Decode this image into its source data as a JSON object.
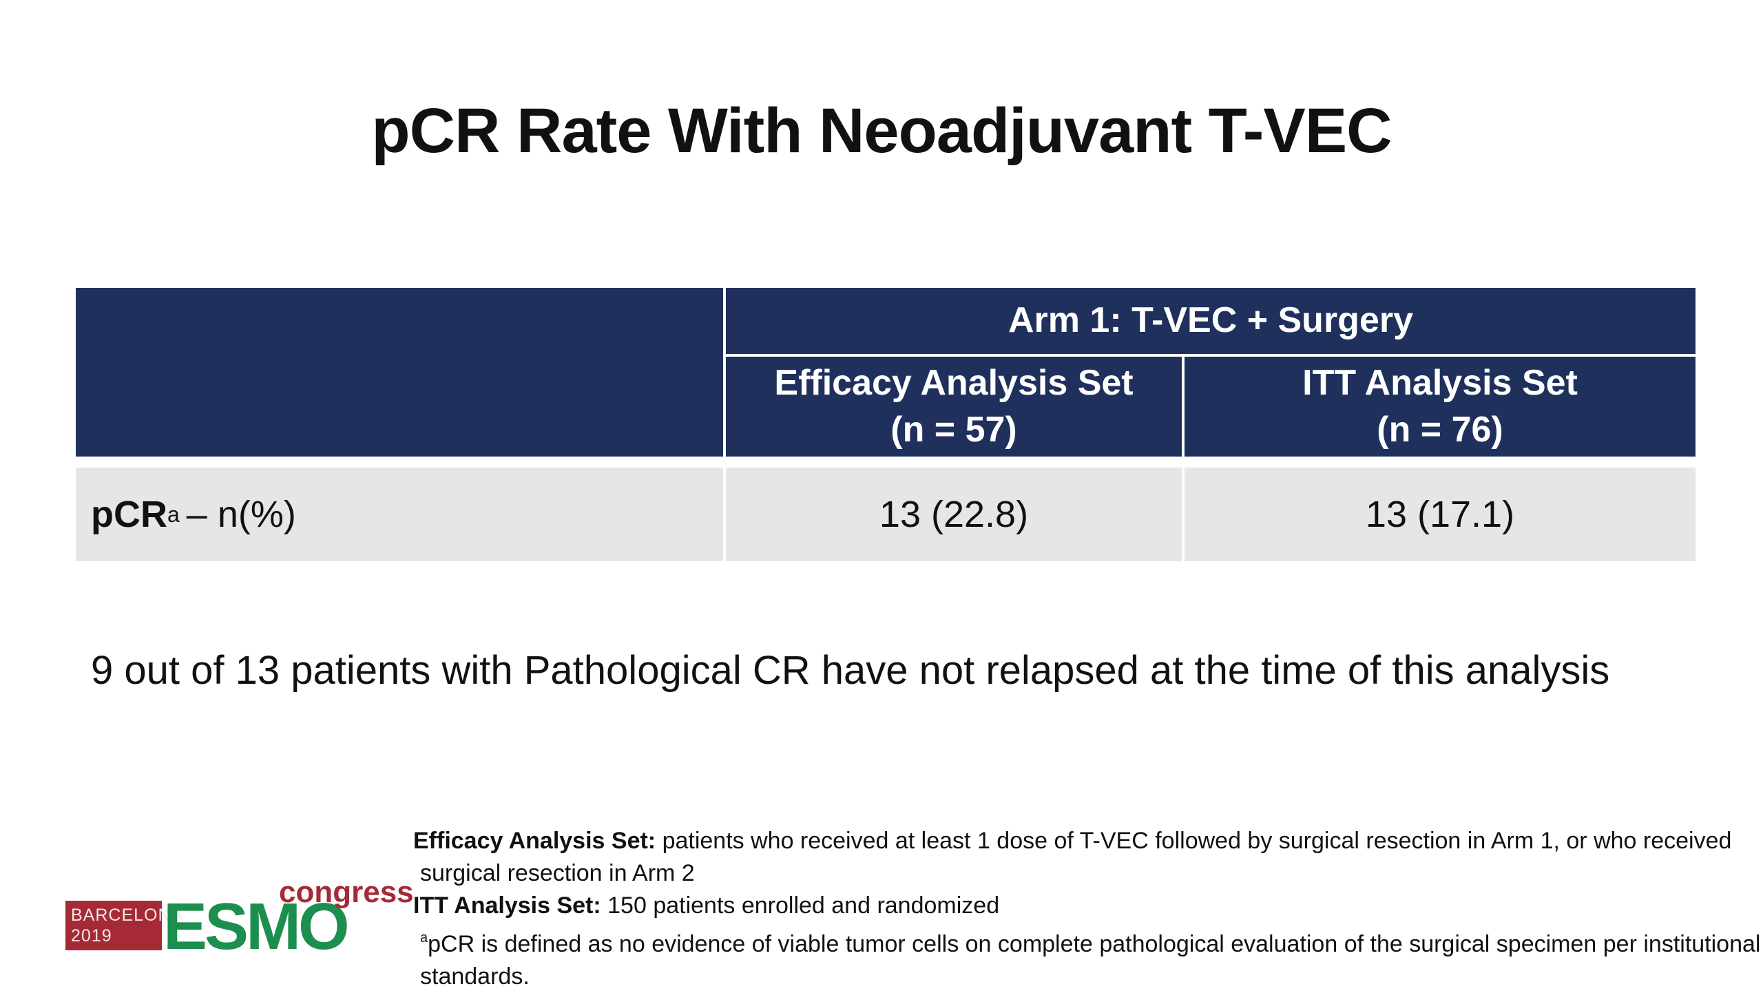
{
  "title": "pCR Rate With Neoadjuvant T-VEC",
  "table": {
    "group_header": "Arm 1: T-VEC + Surgery",
    "columns": [
      {
        "label": "Efficacy Analysis Set",
        "n": "(n = 57)"
      },
      {
        "label": "ITT Analysis Set",
        "n": "(n = 76)"
      }
    ],
    "rows": [
      {
        "label_bold": "pCR",
        "label_sup": "a",
        "label_rest": "– n(%)",
        "values": [
          "13 (22.8)",
          "13 (17.1)"
        ]
      }
    ]
  },
  "statement": "9 out of 13 patients with Pathological CR have not relapsed at the time of this analysis",
  "logo": {
    "city": "BARCELONA",
    "year": "2019",
    "brand": "ESMO",
    "tag": "congress"
  },
  "footnotes": {
    "efficacy_label": "Efficacy Analysis Set:",
    "efficacy_text_1": " patients who received at least 1 dose of T-VEC followed by surgical resection in Arm 1, or who received",
    "efficacy_text_2": "surgical resection in Arm 2",
    "itt_label": "ITT Analysis Set:",
    "itt_text": " 150 patients enrolled and randomized",
    "pcr_sup": "a",
    "pcr_text_1": "pCR is defined as no evidence of viable tumor cells on complete pathological evaluation of the surgical specimen per institutional",
    "pcr_text_2": "standards."
  },
  "colors": {
    "header_bg": "#20305d",
    "row_bg": "#e6e6e7",
    "logo_red": "#a52a36",
    "logo_green": "#1c8e4d"
  }
}
